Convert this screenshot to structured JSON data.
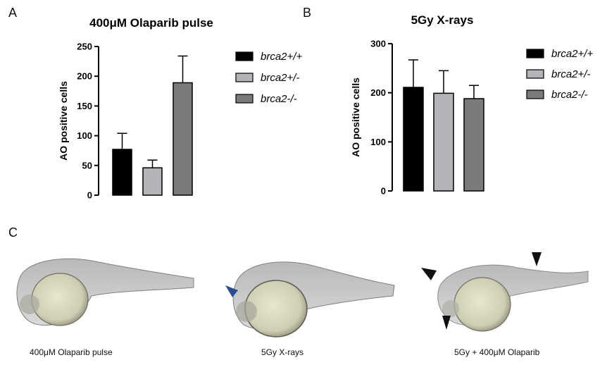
{
  "panels": {
    "a": "A",
    "b": "B",
    "c": "C"
  },
  "chart_data": [
    {
      "type": "bar",
      "title": "400μM Olaparib pulse",
      "ylabel": "AO positive cells",
      "xlabel": "",
      "ylim": [
        0,
        250
      ],
      "yticks": [
        0,
        50,
        100,
        150,
        200,
        250
      ],
      "categories": [
        "brca2+/+",
        "brca2+/-",
        "brca2-/-"
      ],
      "values": [
        77,
        46,
        189
      ],
      "errors": [
        27,
        13,
        45
      ],
      "colors": [
        "#000000",
        "#b4b4b8",
        "#7a7a7a"
      ],
      "legend": [
        "brca2+/+",
        "brca2+/-",
        "brca2-/-"
      ]
    },
    {
      "type": "bar",
      "title": "5Gy X-rays",
      "ylabel": "AO positive cells",
      "xlabel": "",
      "ylim": [
        0,
        300
      ],
      "yticks": [
        0,
        100,
        200,
        300
      ],
      "categories": [
        "brca2+/+",
        "brca2+/-",
        "brca2-/-"
      ],
      "values": [
        211,
        199,
        188
      ],
      "errors": [
        56,
        46,
        27
      ],
      "colors": [
        "#000000",
        "#b4b4b8",
        "#7a7a7a"
      ],
      "legend": [
        "brca2+/+",
        "brca2+/-",
        "brca2-/-"
      ]
    }
  ],
  "captions": [
    "400μM Olaparib pulse",
    "5Gy X-rays",
    "5Gy + 400μM Olaparib"
  ]
}
